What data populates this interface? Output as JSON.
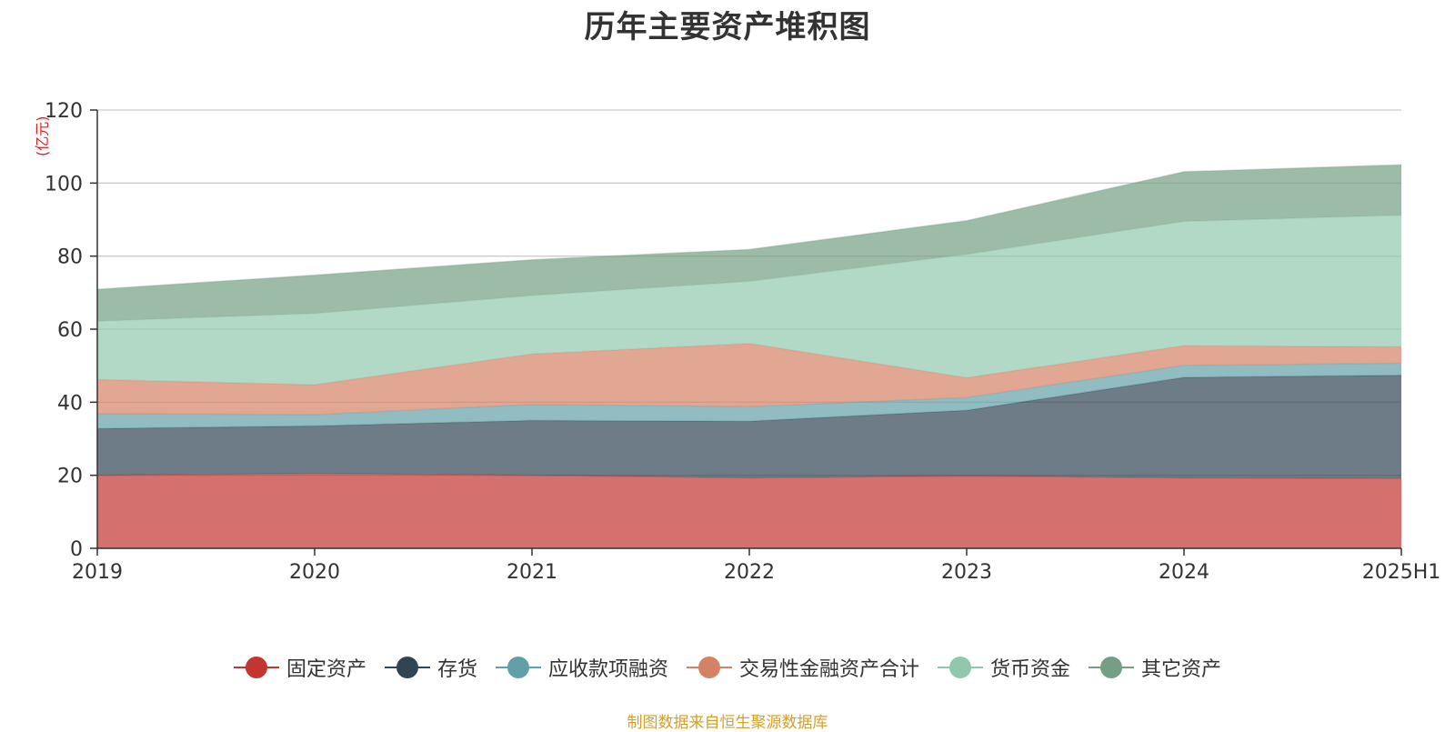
{
  "chart_data": {
    "type": "area",
    "title": "历年主要资产堆积图",
    "ylabel": "(亿元)",
    "xlabel": "",
    "categories": [
      "2019",
      "2020",
      "2021",
      "2022",
      "2023",
      "2024",
      "2025H1"
    ],
    "ylim": [
      0,
      120
    ],
    "yticks": [
      0,
      20,
      40,
      60,
      80,
      100,
      120
    ],
    "stacked": true,
    "grid": true,
    "legend_position": "bottom-center",
    "series": [
      {
        "name": "固定资产",
        "color": "#c23531",
        "values": [
          20.0,
          20.5,
          20.0,
          19.3,
          19.8,
          19.3,
          19.1
        ]
      },
      {
        "name": "存货",
        "color": "#2f4554",
        "values": [
          12.8,
          13.0,
          15.0,
          15.5,
          18.0,
          27.5,
          28.3
        ]
      },
      {
        "name": "应收款项融资",
        "color": "#61a0a8",
        "values": [
          4.1,
          3.1,
          4.4,
          4.0,
          3.5,
          3.3,
          3.3
        ]
      },
      {
        "name": "交易性金融资产合计",
        "color": "#d48265",
        "values": [
          9.3,
          8.2,
          13.8,
          17.3,
          5.4,
          5.4,
          4.5
        ]
      },
      {
        "name": "货币资金",
        "color": "#91c7ae",
        "values": [
          16.0,
          19.5,
          16.0,
          17.0,
          33.8,
          34.0,
          36.0
        ]
      },
      {
        "name": "其它资产",
        "color": "#749f83",
        "values": [
          8.7,
          10.5,
          9.8,
          8.7,
          9.2,
          13.6,
          13.8
        ]
      }
    ]
  },
  "source_note": "制图数据来自恒生聚源数据库"
}
